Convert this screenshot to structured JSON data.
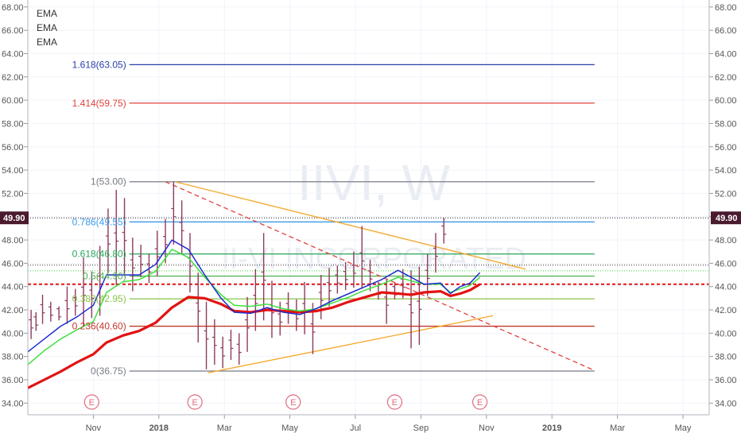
{
  "chart_data": {
    "type": "bar",
    "watermark": {
      "symbol": "IIVI, W",
      "company": "II-VI INCORPORATED"
    },
    "legend": [
      "EMA",
      "EMA",
      "EMA"
    ],
    "y_ticks": [
      "68.00",
      "66.00",
      "64.00",
      "62.00",
      "60.00",
      "58.00",
      "56.00",
      "54.00",
      "52.00",
      "50.00",
      "48.00",
      "46.00",
      "44.00",
      "42.00",
      "40.00",
      "38.00",
      "36.00",
      "34.00"
    ],
    "y_tick_values": [
      68,
      66,
      64,
      62,
      60,
      58,
      56,
      54,
      52,
      50,
      48,
      46,
      44,
      42,
      40,
      38,
      36,
      34
    ],
    "x_ticks": [
      {
        "label": "Nov",
        "x": 2.0
      },
      {
        "label": "2018",
        "x": 4.0
      },
      {
        "label": "Mar",
        "x": 6.0
      },
      {
        "label": "May",
        "x": 8.0
      },
      {
        "label": "Jul",
        "x": 10.0
      },
      {
        "label": "Sep",
        "x": 12.0
      },
      {
        "label": "Nov",
        "x": 14.0
      },
      {
        "label": "2019",
        "x": 16.0
      },
      {
        "label": "Mar",
        "x": 18.0
      },
      {
        "label": "May",
        "x": 20.0
      }
    ],
    "x_range": [
      0,
      20.8
    ],
    "y_range": [
      33.0,
      68.6
    ],
    "current_price": {
      "label": "49.90",
      "value": 49.9
    },
    "fib_levels": [
      {
        "label": "1.618(63.05)",
        "value": 63.05,
        "color": "#2b3fa8"
      },
      {
        "label": "1.414(59.75)",
        "value": 59.75,
        "color": "#e0433c"
      },
      {
        "label": "1(53.00)",
        "value": 53.0,
        "color": "#787b86"
      },
      {
        "label": "0.786(49.55)",
        "value": 49.55,
        "color": "#3d9be9"
      },
      {
        "label": "0.618(46.80)",
        "value": 46.8,
        "color": "#26a65b"
      },
      {
        "label": "0.5(44.90)",
        "value": 44.9,
        "color": "#4caf50"
      },
      {
        "label": "0.382(42.95)",
        "value": 42.95,
        "color": "#8bc34a"
      },
      {
        "label": "0.236(40.60)",
        "value": 40.6,
        "color": "#c0392b"
      },
      {
        "label": "0(36.75)",
        "value": 36.75,
        "color": "#787b86"
      }
    ],
    "fib_range": [
      3.1,
      17.3
    ],
    "earnings": [
      {
        "label": "E",
        "x": 1.95
      },
      {
        "label": "E",
        "x": 5.1
      },
      {
        "label": "E",
        "x": 8.1
      },
      {
        "label": "E",
        "x": 11.2
      },
      {
        "label": "E",
        "x": 13.8
      }
    ],
    "price_bars": [
      {
        "x": 0.1,
        "h": 42.0,
        "l": 39.5
      },
      {
        "x": 0.25,
        "h": 41.8,
        "l": 40.2
      },
      {
        "x": 0.45,
        "h": 43.3,
        "l": 40.8
      },
      {
        "x": 0.7,
        "h": 42.7,
        "l": 41.0
      },
      {
        "x": 0.95,
        "h": 42.3,
        "l": 41.1
      },
      {
        "x": 1.2,
        "h": 44.0,
        "l": 40.8
      },
      {
        "x": 1.45,
        "h": 43.8,
        "l": 41.5
      },
      {
        "x": 1.7,
        "h": 46.5,
        "l": 40.6
      },
      {
        "x": 1.95,
        "h": 45.3,
        "l": 41.3
      },
      {
        "x": 2.2,
        "h": 47.5,
        "l": 41.5
      },
      {
        "x": 2.45,
        "h": 50.7,
        "l": 45.2
      },
      {
        "x": 2.7,
        "h": 52.3,
        "l": 44.1
      },
      {
        "x": 2.95,
        "h": 51.6,
        "l": 44.9
      },
      {
        "x": 3.2,
        "h": 48.2,
        "l": 43.6
      },
      {
        "x": 3.45,
        "h": 47.6,
        "l": 44.8
      },
      {
        "x": 3.7,
        "h": 46.8,
        "l": 44.3
      },
      {
        "x": 3.95,
        "h": 48.8,
        "l": 44.9
      },
      {
        "x": 4.2,
        "h": 49.8,
        "l": 46.0
      },
      {
        "x": 4.45,
        "h": 53.0,
        "l": 47.6
      },
      {
        "x": 4.7,
        "h": 51.4,
        "l": 46.8
      },
      {
        "x": 4.95,
        "h": 48.6,
        "l": 43.5
      },
      {
        "x": 5.2,
        "h": 45.2,
        "l": 39.2
      },
      {
        "x": 5.45,
        "h": 42.7,
        "l": 36.9
      },
      {
        "x": 5.7,
        "h": 41.2,
        "l": 37.3
      },
      {
        "x": 5.95,
        "h": 39.7,
        "l": 37.0
      },
      {
        "x": 6.2,
        "h": 40.3,
        "l": 37.7
      },
      {
        "x": 6.45,
        "h": 40.0,
        "l": 37.3
      },
      {
        "x": 6.7,
        "h": 43.1,
        "l": 38.4
      },
      {
        "x": 6.95,
        "h": 45.5,
        "l": 40.2
      },
      {
        "x": 7.2,
        "h": 48.6,
        "l": 41.1
      },
      {
        "x": 7.45,
        "h": 44.5,
        "l": 39.6
      },
      {
        "x": 7.7,
        "h": 42.7,
        "l": 39.8
      },
      {
        "x": 7.95,
        "h": 43.5,
        "l": 40.8
      },
      {
        "x": 8.2,
        "h": 42.9,
        "l": 40.2
      },
      {
        "x": 8.45,
        "h": 44.4,
        "l": 39.9
      },
      {
        "x": 8.7,
        "h": 42.6,
        "l": 38.2
      },
      {
        "x": 8.95,
        "h": 45.0,
        "l": 41.2
      },
      {
        "x": 9.2,
        "h": 45.6,
        "l": 42.3
      },
      {
        "x": 9.45,
        "h": 45.8,
        "l": 43.4
      },
      {
        "x": 9.7,
        "h": 46.1,
        "l": 43.7
      },
      {
        "x": 9.95,
        "h": 47.0,
        "l": 43.9
      },
      {
        "x": 10.2,
        "h": 49.2,
        "l": 43.8
      },
      {
        "x": 10.45,
        "h": 46.3,
        "l": 43.6
      },
      {
        "x": 10.7,
        "h": 44.4,
        "l": 42.9
      },
      {
        "x": 10.95,
        "h": 44.6,
        "l": 40.8
      },
      {
        "x": 11.2,
        "h": 44.3,
        "l": 42.9
      },
      {
        "x": 11.45,
        "h": 45.5,
        "l": 43.0
      },
      {
        "x": 11.7,
        "h": 45.4,
        "l": 38.7
      },
      {
        "x": 11.95,
        "h": 45.7,
        "l": 39.0
      },
      {
        "x": 12.2,
        "h": 46.8,
        "l": 43.2
      },
      {
        "x": 12.45,
        "h": 48.6,
        "l": 45.2
      },
      {
        "x": 12.7,
        "h": 49.9,
        "l": 47.7
      }
    ],
    "ema_fast": {
      "color": "#1f2bd1",
      "points": [
        [
          0,
          38.4
        ],
        [
          0.5,
          39.5
        ],
        [
          1.0,
          40.6
        ],
        [
          1.5,
          41.4
        ],
        [
          2.0,
          42.4
        ],
        [
          2.4,
          45.0
        ],
        [
          2.9,
          45.0
        ],
        [
          3.4,
          45.0
        ],
        [
          3.9,
          45.9
        ],
        [
          4.4,
          48.0
        ],
        [
          4.9,
          47.2
        ],
        [
          5.4,
          45.0
        ],
        [
          5.9,
          43.0
        ],
        [
          6.3,
          41.8
        ],
        [
          6.8,
          41.7
        ],
        [
          7.3,
          42.2
        ],
        [
          7.8,
          41.8
        ],
        [
          8.3,
          41.6
        ],
        [
          8.8,
          42.1
        ],
        [
          9.3,
          42.8
        ],
        [
          9.8,
          43.4
        ],
        [
          10.3,
          44.0
        ],
        [
          10.8,
          44.6
        ],
        [
          11.3,
          45.4
        ],
        [
          11.7,
          44.8
        ],
        [
          12.1,
          44.2
        ],
        [
          12.6,
          44.3
        ],
        [
          12.9,
          43.4
        ],
        [
          13.2,
          44.0
        ],
        [
          13.5,
          44.3
        ],
        [
          13.8,
          45.2
        ]
      ]
    },
    "ema_mid": {
      "color": "#3ce03c",
      "points": [
        [
          0,
          37.3
        ],
        [
          0.5,
          38.5
        ],
        [
          1.0,
          39.5
        ],
        [
          1.5,
          40.3
        ],
        [
          2.0,
          41.0
        ],
        [
          2.4,
          43.5
        ],
        [
          2.9,
          44.4
        ],
        [
          3.4,
          44.6
        ],
        [
          3.9,
          45.3
        ],
        [
          4.4,
          47.2
        ],
        [
          4.9,
          46.5
        ],
        [
          5.4,
          44.8
        ],
        [
          5.9,
          43.3
        ],
        [
          6.3,
          42.4
        ],
        [
          6.8,
          42.3
        ],
        [
          7.3,
          42.5
        ],
        [
          7.8,
          42.1
        ],
        [
          8.3,
          41.9
        ],
        [
          8.8,
          42.1
        ],
        [
          9.3,
          42.6
        ],
        [
          9.8,
          43.1
        ],
        [
          10.3,
          43.7
        ],
        [
          10.8,
          44.2
        ],
        [
          11.3,
          44.8
        ],
        [
          11.7,
          44.5
        ],
        [
          12.1,
          44.2
        ],
        [
          12.6,
          44.2
        ],
        [
          12.9,
          43.5
        ],
        [
          13.2,
          43.8
        ],
        [
          13.5,
          44.1
        ],
        [
          13.8,
          44.8
        ]
      ]
    },
    "ema_slow": {
      "color": "#e31212",
      "points": [
        [
          0,
          35.3
        ],
        [
          0.5,
          36.0
        ],
        [
          1.0,
          36.7
        ],
        [
          1.5,
          37.5
        ],
        [
          2.0,
          38.2
        ],
        [
          2.4,
          39.2
        ],
        [
          2.9,
          39.8
        ],
        [
          3.4,
          40.2
        ],
        [
          3.9,
          40.9
        ],
        [
          4.4,
          42.2
        ],
        [
          4.9,
          43.1
        ],
        [
          5.4,
          43.0
        ],
        [
          5.9,
          42.5
        ],
        [
          6.3,
          41.9
        ],
        [
          6.8,
          41.8
        ],
        [
          7.3,
          42.0
        ],
        [
          7.8,
          41.9
        ],
        [
          8.3,
          41.8
        ],
        [
          8.8,
          41.9
        ],
        [
          9.3,
          42.2
        ],
        [
          9.8,
          42.7
        ],
        [
          10.3,
          43.1
        ],
        [
          10.8,
          43.5
        ],
        [
          11.3,
          43.4
        ],
        [
          11.7,
          43.3
        ],
        [
          12.1,
          43.5
        ],
        [
          12.6,
          43.6
        ],
        [
          12.9,
          43.2
        ],
        [
          13.2,
          43.4
        ],
        [
          13.5,
          43.7
        ],
        [
          13.8,
          44.2
        ]
      ]
    },
    "dotted_levels": [
      {
        "value": 45.85,
        "color": "#333333",
        "style": "dotted"
      },
      {
        "value": 45.35,
        "color": "#3ce03c",
        "style": "dotted"
      },
      {
        "value": 44.2,
        "color": "#e31212",
        "style": "dashed"
      }
    ],
    "trend_lines": [
      {
        "from": [
          4.5,
          53.0
        ],
        "to": [
          15.2,
          45.5
        ],
        "color": "#f5a623",
        "dash": ""
      },
      {
        "from": [
          5.5,
          36.6
        ],
        "to": [
          14.2,
          41.5
        ],
        "color": "#f5a623",
        "dash": ""
      },
      {
        "from": [
          4.2,
          53.0
        ],
        "to": [
          17.3,
          36.8
        ],
        "color": "#e34040",
        "dash": "6,4"
      }
    ]
  }
}
